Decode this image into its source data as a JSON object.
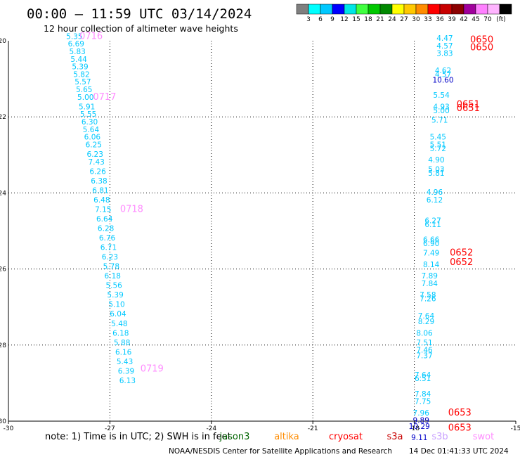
{
  "header": {
    "title": "00:00 — 11:59 UTC 03/14/2024",
    "subtitle": "12 hour collection of altimeter wave heights"
  },
  "colorbar": {
    "colors": [
      "#7f7f7f",
      "#00ffff",
      "#00c8ff",
      "#0000ff",
      "#00e6e6",
      "#40ff40",
      "#00c800",
      "#008800",
      "#ffff00",
      "#ffc800",
      "#ff8c00",
      "#ff0000",
      "#c80000",
      "#8b0000",
      "#a0009c",
      "#ff80ff",
      "#ffb4ff",
      "#000000"
    ],
    "labels": [
      "3",
      "6",
      "9",
      "12",
      "15",
      "18",
      "21",
      "24",
      "27",
      "30",
      "33",
      "36",
      "39",
      "42",
      "45",
      "70"
    ],
    "unit": "(ft)"
  },
  "note": {
    "prefix": "note:  1) Time is in UTC; 2) SWH is in feet"
  },
  "satellites": [
    {
      "name": "jason3",
      "color": "#006400"
    },
    {
      "name": "altika",
      "color": "#ff8c00"
    },
    {
      "name": "cryosat",
      "color": "#ff0000"
    },
    {
      "name": "s3a",
      "color": "#c80000"
    },
    {
      "name": "s3b",
      "color": "#c8a0ff"
    },
    {
      "name": "swot",
      "color": "#ff8cff"
    }
  ],
  "footer": {
    "credit": "NOAA/NESDIS Center for Satellite Applications and Research",
    "timestamp": "14 Dec 01:41:33 UTC 2024"
  },
  "chart_data": {
    "type": "scatter",
    "xlim": [
      -30,
      -15
    ],
    "ylim": [
      -30,
      -20
    ],
    "x_ticks": [
      {
        "value": -30,
        "label": "-30"
      },
      {
        "value": -27,
        "label": "-27"
      },
      {
        "value": -24,
        "label": "-24"
      },
      {
        "value": -21,
        "label": "-21"
      },
      {
        "value": -18,
        "label": "-18"
      },
      {
        "value": -15,
        "label": "-15"
      }
    ],
    "y_ticks": [
      {
        "value": -20,
        "label": "-20"
      },
      {
        "value": -22,
        "label": "-22"
      },
      {
        "value": -24,
        "label": "-24"
      },
      {
        "value": -26,
        "label": "-26"
      },
      {
        "value": -28,
        "label": "-28"
      },
      {
        "value": -30,
        "label": "-30"
      }
    ],
    "grid": "dotted",
    "series": [
      {
        "color": "#00c8ff",
        "points": [
          {
            "x": -28.05,
            "y": -19.95,
            "v": "5.35"
          },
          {
            "x": -28.0,
            "y": -20.15,
            "v": "6.69"
          },
          {
            "x": -27.96,
            "y": -20.35,
            "v": "5.83"
          },
          {
            "x": -27.92,
            "y": -20.55,
            "v": "5.44"
          },
          {
            "x": -27.88,
            "y": -20.75,
            "v": "5.39"
          },
          {
            "x": -27.84,
            "y": -20.95,
            "v": "5.82"
          },
          {
            "x": -27.8,
            "y": -21.15,
            "v": "5.57"
          },
          {
            "x": -27.76,
            "y": -21.35,
            "v": "5.65"
          },
          {
            "x": -27.72,
            "y": -21.55,
            "v": "5.00"
          },
          {
            "x": -27.68,
            "y": -21.8,
            "v": "5.91"
          },
          {
            "x": -27.64,
            "y": -22.0,
            "v": "5.55"
          },
          {
            "x": -27.6,
            "y": -22.2,
            "v": "6.30"
          },
          {
            "x": -27.56,
            "y": -22.4,
            "v": "5.64"
          },
          {
            "x": -27.52,
            "y": -22.6,
            "v": "6.06"
          },
          {
            "x": -27.48,
            "y": -22.8,
            "v": "6.25"
          },
          {
            "x": -27.44,
            "y": -23.05,
            "v": "6.23"
          },
          {
            "x": -27.4,
            "y": -23.25,
            "v": "7.43"
          },
          {
            "x": -27.36,
            "y": -23.5,
            "v": "6.26"
          },
          {
            "x": -27.32,
            "y": -23.75,
            "v": "6.38"
          },
          {
            "x": -27.28,
            "y": -24.0,
            "v": "6.81"
          },
          {
            "x": -27.24,
            "y": -24.25,
            "v": "6.48"
          },
          {
            "x": -27.2,
            "y": -24.5,
            "v": "7.15"
          },
          {
            "x": -27.16,
            "y": -24.75,
            "v": "6.64"
          },
          {
            "x": -27.12,
            "y": -25.0,
            "v": "6.28"
          },
          {
            "x": -27.08,
            "y": -25.25,
            "v": "6.76"
          },
          {
            "x": -27.04,
            "y": -25.5,
            "v": "6.71"
          },
          {
            "x": -27.0,
            "y": -25.75,
            "v": "6.23"
          },
          {
            "x": -26.96,
            "y": -26.0,
            "v": "5.78"
          },
          {
            "x": -26.92,
            "y": -26.25,
            "v": "6.18"
          },
          {
            "x": -26.88,
            "y": -26.5,
            "v": "5.56"
          },
          {
            "x": -26.84,
            "y": -26.75,
            "v": "5.39"
          },
          {
            "x": -26.8,
            "y": -27.0,
            "v": "5.10"
          },
          {
            "x": -26.76,
            "y": -27.25,
            "v": "6.04"
          },
          {
            "x": -26.72,
            "y": -27.5,
            "v": "5.48"
          },
          {
            "x": -26.68,
            "y": -27.75,
            "v": "6.18"
          },
          {
            "x": -26.64,
            "y": -28.0,
            "v": "5.88"
          },
          {
            "x": -26.6,
            "y": -28.25,
            "v": "6.16"
          },
          {
            "x": -26.56,
            "y": -28.5,
            "v": "5.43"
          },
          {
            "x": -26.52,
            "y": -28.75,
            "v": "6.39"
          },
          {
            "x": -26.48,
            "y": -29.0,
            "v": "6.13"
          }
        ]
      },
      {
        "color": "#00c8ff",
        "points": [
          {
            "x": -17.1,
            "y": -20.0,
            "v": "4.47"
          },
          {
            "x": -17.1,
            "y": -20.2,
            "v": "4.57"
          },
          {
            "x": -17.1,
            "y": -20.4,
            "v": "3.83"
          },
          {
            "x": -17.15,
            "y": -20.85,
            "v": "4.62"
          },
          {
            "x": -17.15,
            "y": -20.95,
            "v": "4.57"
          },
          {
            "x": -17.2,
            "y": -21.5,
            "v": "5.54"
          },
          {
            "x": -17.2,
            "y": -21.8,
            "v": "4.93"
          },
          {
            "x": -17.2,
            "y": -21.9,
            "v": "5.00"
          },
          {
            "x": -17.25,
            "y": -22.15,
            "v": "5.71"
          },
          {
            "x": -17.3,
            "y": -22.6,
            "v": "5.45"
          },
          {
            "x": -17.3,
            "y": -22.8,
            "v": "5.51"
          },
          {
            "x": -17.3,
            "y": -22.9,
            "v": "5.72"
          },
          {
            "x": -17.35,
            "y": -23.2,
            "v": "4.90"
          },
          {
            "x": -17.35,
            "y": -23.45,
            "v": "5.03"
          },
          {
            "x": -17.35,
            "y": -23.55,
            "v": "5.81"
          },
          {
            "x": -17.4,
            "y": -24.05,
            "v": "4.96"
          },
          {
            "x": -17.4,
            "y": -24.25,
            "v": "6.12"
          },
          {
            "x": -17.45,
            "y": -24.8,
            "v": "6.27"
          },
          {
            "x": -17.45,
            "y": -24.9,
            "v": "6.11"
          },
          {
            "x": -17.5,
            "y": -25.3,
            "v": "6.66"
          },
          {
            "x": -17.5,
            "y": -25.4,
            "v": "6.90"
          },
          {
            "x": -17.5,
            "y": -25.65,
            "v": "7.49"
          },
          {
            "x": -17.5,
            "y": -25.95,
            "v": "8.14"
          },
          {
            "x": -17.55,
            "y": -26.25,
            "v": "7.89"
          },
          {
            "x": -17.55,
            "y": -26.45,
            "v": "7.84"
          },
          {
            "x": -17.6,
            "y": -26.75,
            "v": "7.58"
          },
          {
            "x": -17.6,
            "y": -26.85,
            "v": "7.26"
          },
          {
            "x": -17.65,
            "y": -27.3,
            "v": "7.64"
          },
          {
            "x": -17.65,
            "y": -27.45,
            "v": "8.29"
          },
          {
            "x": -17.7,
            "y": -27.75,
            "v": "8.06"
          },
          {
            "x": -17.7,
            "y": -28.0,
            "v": "7.51"
          },
          {
            "x": -17.7,
            "y": -28.2,
            "v": "7.46"
          },
          {
            "x": -17.7,
            "y": -28.35,
            "v": "7.37"
          },
          {
            "x": -17.75,
            "y": -28.85,
            "v": "7.64"
          },
          {
            "x": -17.75,
            "y": -28.95,
            "v": "6.51"
          },
          {
            "x": -17.75,
            "y": -29.35,
            "v": "7.84"
          },
          {
            "x": -17.75,
            "y": -29.55,
            "v": "7.75"
          },
          {
            "x": -17.8,
            "y": -29.85,
            "v": "7.96"
          }
        ]
      },
      {
        "color": "#0000c8",
        "points": [
          {
            "x": -17.15,
            "y": -21.1,
            "v": "10.60"
          },
          {
            "x": -17.8,
            "y": -30.05,
            "v": "9.89"
          },
          {
            "x": -17.85,
            "y": -30.2,
            "v": "10.29"
          },
          {
            "x": -17.85,
            "y": -30.5,
            "v": "9.11"
          }
        ]
      }
    ],
    "time_labels": [
      {
        "x": -27.9,
        "y": -19.95,
        "text": "0716",
        "color": "#ff8cff"
      },
      {
        "x": -27.5,
        "y": -21.55,
        "text": "0717",
        "color": "#ff8cff"
      },
      {
        "x": -26.7,
        "y": -24.5,
        "text": "0718",
        "color": "#ff8cff"
      },
      {
        "x": -26.1,
        "y": -28.7,
        "text": "0719",
        "color": "#ff8cff"
      },
      {
        "x": -16.35,
        "y": -20.05,
        "text": "0650",
        "color": "#ff0000"
      },
      {
        "x": -16.35,
        "y": -20.25,
        "text": "0650",
        "color": "#ff0000"
      },
      {
        "x": -16.75,
        "y": -21.75,
        "text": "0651",
        "color": "#ff0000"
      },
      {
        "x": -16.75,
        "y": -21.85,
        "text": "0651",
        "color": "#ff0000"
      },
      {
        "x": -16.95,
        "y": -25.65,
        "text": "0652",
        "color": "#ff0000"
      },
      {
        "x": -16.95,
        "y": -25.9,
        "text": "0652",
        "color": "#ff0000"
      },
      {
        "x": -17.0,
        "y": -29.85,
        "text": "0653",
        "color": "#ff0000"
      },
      {
        "x": -17.0,
        "y": -30.25,
        "text": "0653",
        "color": "#ff0000"
      }
    ]
  }
}
